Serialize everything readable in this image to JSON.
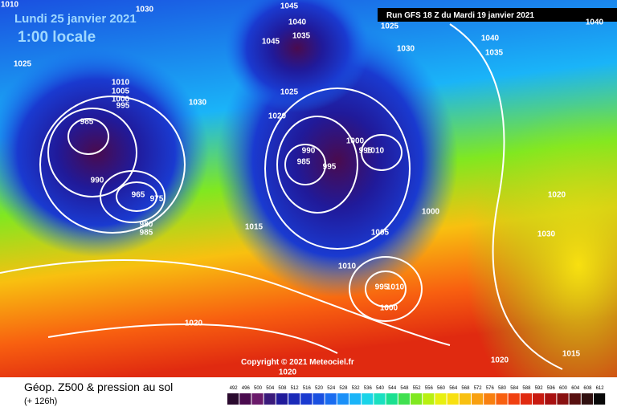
{
  "header": {
    "date": "Lundi 25 janvier 2021",
    "time": "1:00 locale",
    "run": "Run GFS 18 Z du Mardi 19 janvier 2021"
  },
  "copyright": "Copyright © 2021 Meteociel.fr",
  "footer": {
    "title": "Géop. Z500 & pression au sol",
    "lead": "(+ 126h)"
  },
  "isobars": [
    "1010",
    "1030",
    "1045",
    "1040",
    "1035",
    "1045",
    "1025",
    "1030",
    "1040",
    "1035",
    "1040",
    "1025",
    "1010",
    "1005",
    "1000",
    "995",
    "1030",
    "1025",
    "1020",
    "985",
    "990",
    "985",
    "995",
    "1000",
    "995",
    "1010",
    "990",
    "965",
    "975",
    "980",
    "985",
    "1015",
    "1000",
    "1005",
    "1010",
    "1020",
    "1030",
    "995",
    "1010",
    "1000",
    "1020",
    "1020",
    "1015",
    "1020"
  ],
  "scale": {
    "values": [
      492,
      496,
      500,
      504,
      508,
      512,
      516,
      520,
      524,
      528,
      532,
      536,
      540,
      544,
      548,
      552,
      556,
      560,
      564,
      568,
      572,
      576,
      580,
      584,
      588,
      592,
      596,
      600,
      604,
      608,
      612
    ],
    "colors": [
      "#2a0a2e",
      "#4a0b4e",
      "#6a1a6a",
      "#3a1a7a",
      "#201a9a",
      "#1a2ab8",
      "#1a3ad0",
      "#1a50e0",
      "#1a6cf0",
      "#1a90f8",
      "#1ab4f8",
      "#1ad4e8",
      "#1ae0c0",
      "#1ae090",
      "#40e050",
      "#80e820",
      "#b8f010",
      "#e8f010",
      "#f8e010",
      "#f8c010",
      "#f8a010",
      "#f88010",
      "#f86010",
      "#f04010",
      "#e02a10",
      "#c81a10",
      "#a81010",
      "#881010",
      "#581010",
      "#301010",
      "#080808"
    ]
  }
}
